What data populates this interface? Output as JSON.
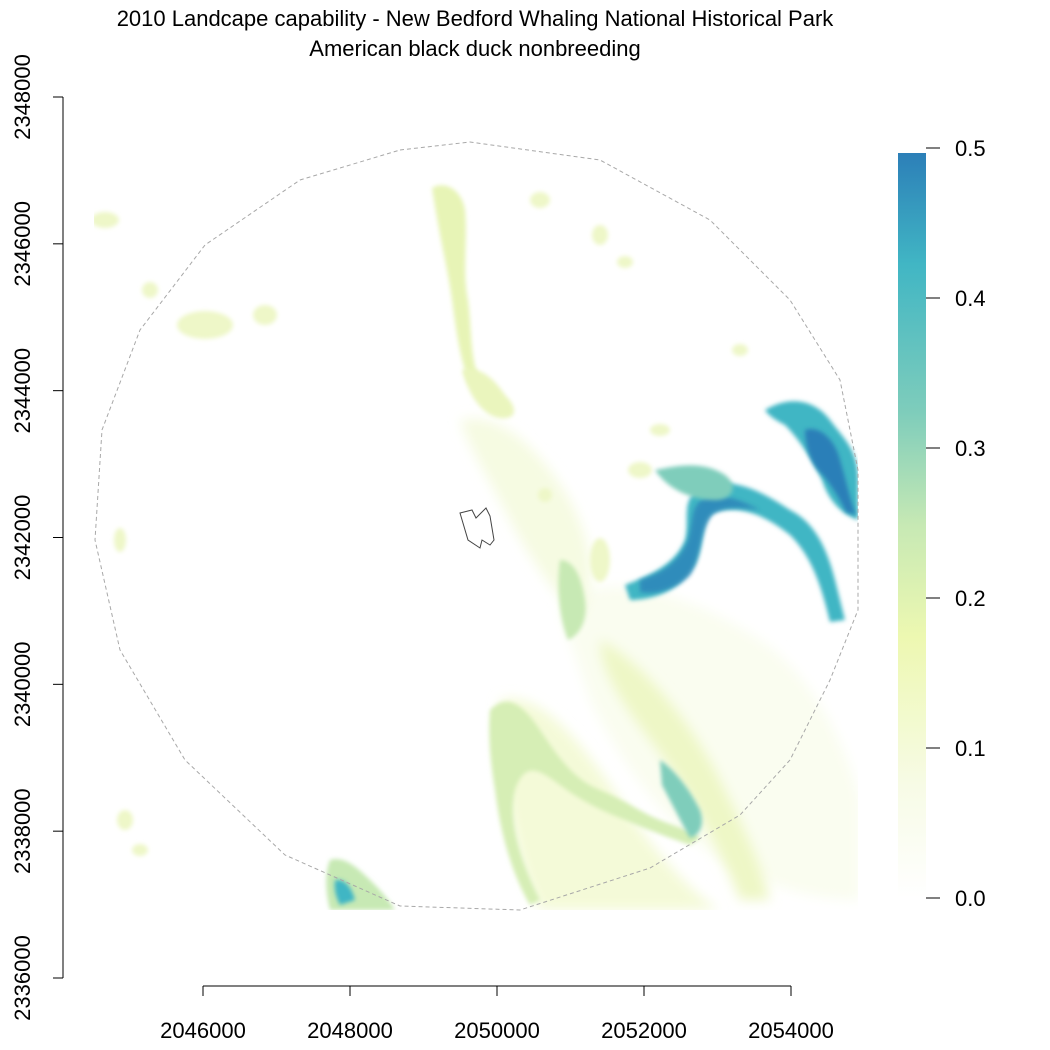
{
  "chart_data": {
    "type": "heatmap",
    "title": "2010 Landcape capability - New Bedford Whaling National Historical Park",
    "subtitle": "American black duck nonbreeding",
    "x_ticks": [
      2046000,
      2048000,
      2050000,
      2052000,
      2054000
    ],
    "y_ticks": [
      2336000,
      2338000,
      2340000,
      2342000,
      2344000,
      2346000,
      2348000
    ],
    "x_tick_labels": [
      "2046000",
      "2048000",
      "2050000",
      "2052000",
      "2054000"
    ],
    "y_tick_labels": [
      "2336000",
      "2338000",
      "2340000",
      "2342000",
      "2344000",
      "2346000",
      "2348000"
    ],
    "xlim": [
      2044000,
      2055000
    ],
    "ylim": [
      2336000,
      2348000
    ],
    "legend": {
      "placement": "right",
      "range": [
        0.0,
        0.5
      ],
      "ticks": [
        0.0,
        0.1,
        0.2,
        0.3,
        0.4,
        0.5
      ],
      "tick_labels": [
        "0.0",
        "0.1",
        "0.2",
        "0.3",
        "0.4",
        "0.5"
      ],
      "colors": [
        "#ffffff",
        "#f7fbe6",
        "#edf8b1",
        "#c7e9b4",
        "#7fcdbb",
        "#41b6c4",
        "#2c7fb8"
      ]
    },
    "colors": {
      "boundary": "#a8a8a8",
      "park_outline": "#444444"
    }
  }
}
